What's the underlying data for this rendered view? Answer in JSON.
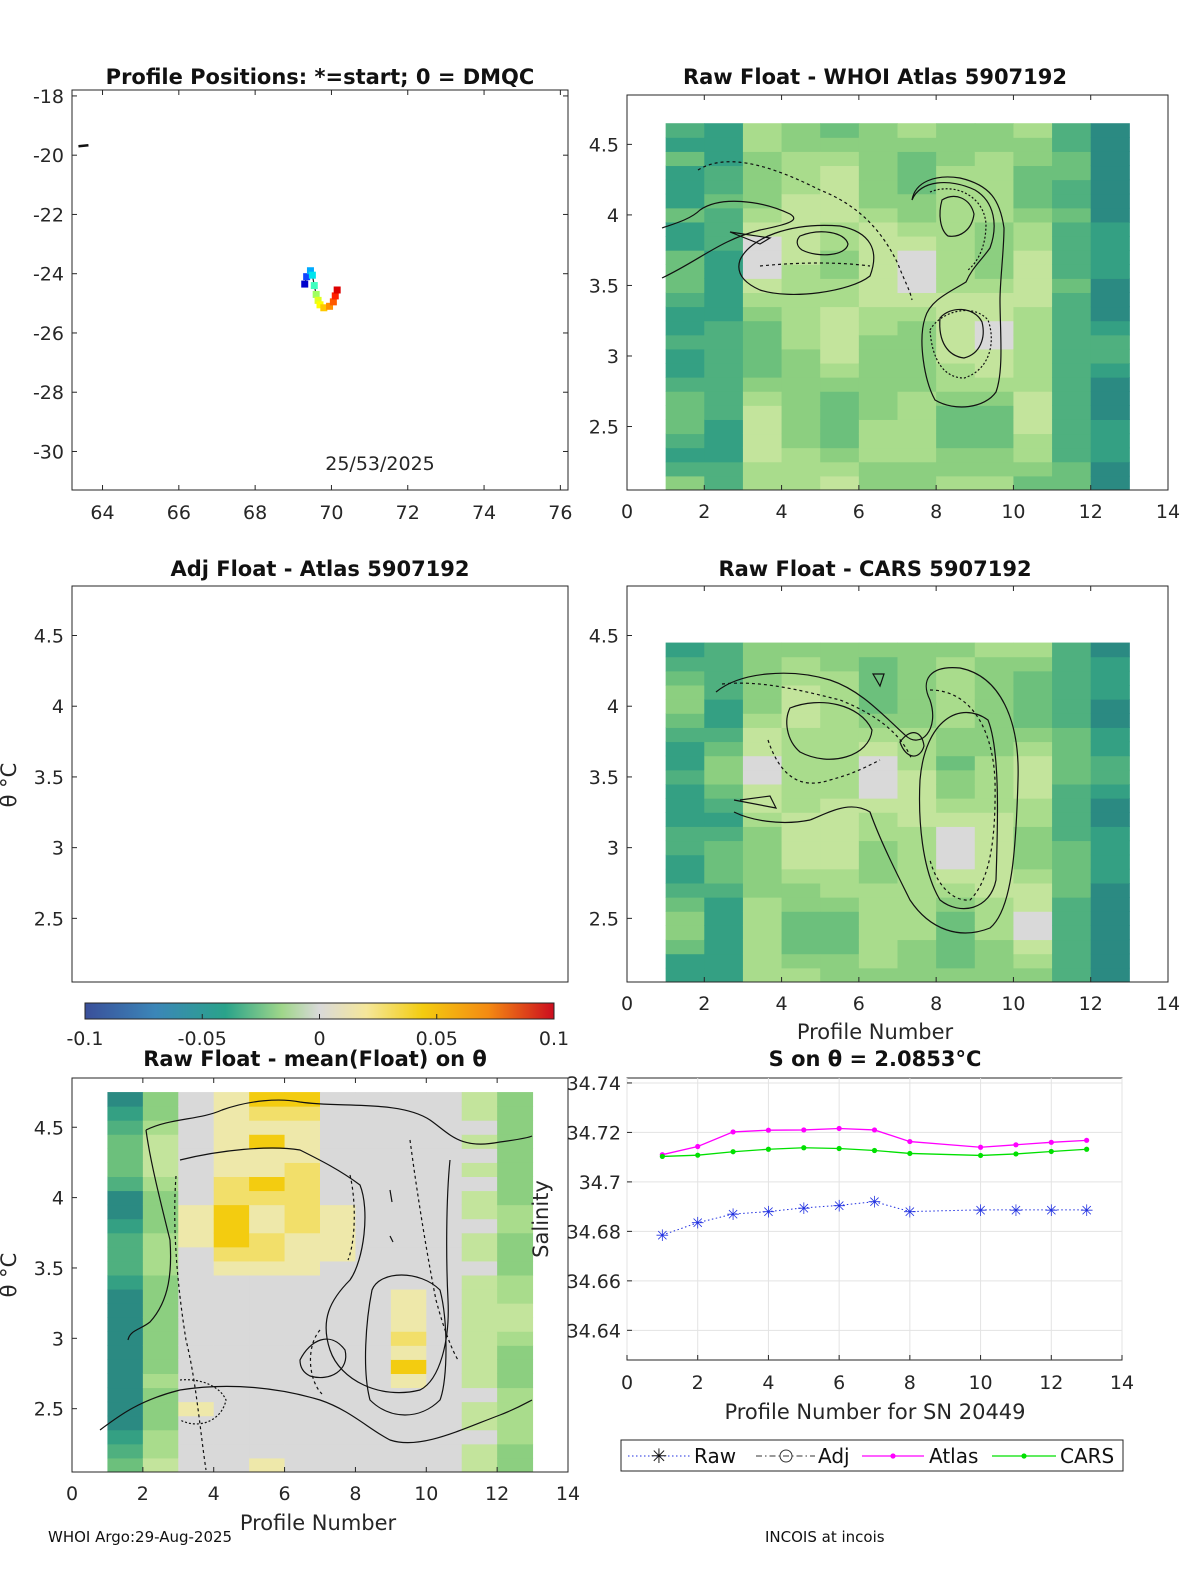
{
  "colors": {
    "raw": "#1f2fe0",
    "adj": "#333333",
    "atlas": "#ff00ff",
    "cars": "#00e000",
    "axis": "#262626"
  },
  "footer": {
    "left": "WHOI Argo:29-Aug-2025",
    "right": "INCOIS at incois"
  },
  "colorbar": {
    "min": -0.1,
    "max": 0.1,
    "ticks": [
      "-0.1",
      "-0.05",
      "0",
      "0.05",
      "0.1"
    ]
  },
  "chart_data": [
    {
      "id": "positions",
      "type": "scatter",
      "title": "Profile Positions: *=start; 0 = DMQC",
      "date_label": "25/53/2025",
      "xlim": [
        63.2,
        76.2
      ],
      "ylim": [
        -31.3,
        -17.8
      ],
      "xticks": [
        "64",
        "66",
        "68",
        "70",
        "72",
        "74",
        "76"
      ],
      "yticks": [
        "-18",
        "-20",
        "-22",
        "-24",
        "-26",
        "-28",
        "-30"
      ],
      "track": {
        "lon": [
          69.3,
          69.35,
          69.45,
          69.5,
          69.55,
          69.6,
          69.65,
          69.7,
          69.8,
          69.95,
          70.05,
          70.1,
          70.15
        ],
        "lat": [
          -24.35,
          -24.1,
          -23.9,
          -24.05,
          -24.4,
          -24.7,
          -24.9,
          -25.05,
          -25.15,
          -25.1,
          -24.95,
          -24.75,
          -24.55
        ],
        "colors": [
          "#0000cc",
          "#1144ff",
          "#00aaff",
          "#00e5ee",
          "#40ffbf",
          "#a0ff60",
          "#e0ff20",
          "#ffff00",
          "#ffc800",
          "#ff9000",
          "#ff5a00",
          "#ff2000",
          "#dd0000"
        ]
      },
      "coast_point": {
        "lon": 63.5,
        "lat": -19.7
      }
    },
    {
      "id": "raw_whoi",
      "type": "heatmap",
      "title": "Raw Float - WHOI Atlas  5907192",
      "xlim": [
        0,
        14
      ],
      "ylim": [
        2.05,
        4.85
      ],
      "xticks": [
        "0",
        "2",
        "4",
        "6",
        "8",
        "10",
        "12",
        "14"
      ],
      "yticks": [
        "2.5",
        "3",
        "3.5",
        "4",
        "4.5"
      ],
      "xlabel": ""
    },
    {
      "id": "adj_atlas",
      "type": "heatmap",
      "title": "Adj Float - Atlas  5907192",
      "xlim": [
        0,
        14
      ],
      "ylim": [
        2.05,
        4.85
      ],
      "xticks": [],
      "yticks": [
        "2.5",
        "3",
        "3.5",
        "4",
        "4.5"
      ],
      "ylabel": "θ °C"
    },
    {
      "id": "raw_cars",
      "type": "heatmap",
      "title": "Raw Float - CARS  5907192",
      "xlim": [
        0,
        14
      ],
      "ylim": [
        2.05,
        4.85
      ],
      "xticks": [
        "0",
        "2",
        "4",
        "6",
        "8",
        "10",
        "12",
        "14"
      ],
      "yticks": [
        "2.5",
        "3",
        "3.5",
        "4",
        "4.5"
      ],
      "xlabel": "Profile Number"
    },
    {
      "id": "raw_mean",
      "type": "heatmap",
      "title": "Raw Float - mean(Float) on θ",
      "xlim": [
        0,
        14
      ],
      "ylim": [
        2.05,
        4.85
      ],
      "xticks": [
        "0",
        "2",
        "4",
        "6",
        "8",
        "10",
        "12",
        "14"
      ],
      "yticks": [
        "2.5",
        "3",
        "3.5",
        "4",
        "4.5"
      ],
      "xlabel": "Profile Number",
      "ylabel": "θ °C"
    },
    {
      "id": "salinity",
      "type": "line",
      "title": "S on θ = 2.0853°C",
      "xlabel": "Profile Number for SN 20449",
      "ylabel": "Salinity",
      "xlim": [
        0,
        14
      ],
      "ylim": [
        34.628,
        34.742
      ],
      "xticks": [
        "0",
        "2",
        "4",
        "6",
        "8",
        "10",
        "12",
        "14"
      ],
      "yticks": [
        "34.64",
        "34.66",
        "34.68",
        "34.7",
        "34.72",
        "34.74"
      ],
      "x": [
        1,
        2,
        3,
        4,
        5,
        6,
        7,
        8,
        10,
        11,
        12,
        13
      ],
      "series": [
        {
          "name": "Raw",
          "values": [
            34.6785,
            34.6835,
            34.687,
            34.688,
            34.6895,
            34.6905,
            34.692,
            34.688,
            34.6887,
            34.6887,
            34.6887,
            34.6887
          ]
        },
        {
          "name": "Atlas",
          "values": [
            34.711,
            34.7143,
            34.7202,
            34.7209,
            34.721,
            34.7216,
            34.721,
            34.7163,
            34.714,
            34.715,
            34.716,
            34.7168
          ]
        },
        {
          "name": "CARS",
          "values": [
            34.7103,
            34.7108,
            34.7122,
            34.7132,
            34.7138,
            34.7135,
            34.7127,
            34.7115,
            34.7107,
            34.7113,
            34.7123,
            34.7132
          ]
        }
      ],
      "legend": [
        "Raw",
        "Adj",
        "Atlas",
        "CARS"
      ]
    }
  ]
}
